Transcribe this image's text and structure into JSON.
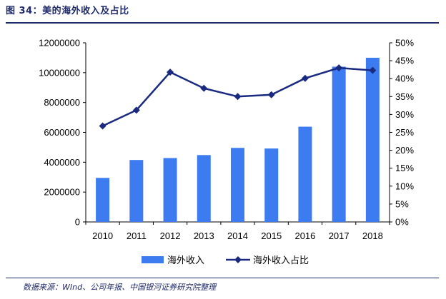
{
  "header": {
    "title": "图 34：美的海外收入及占比"
  },
  "footer": {
    "source": "数据来源：WInd、公司年报、中国银河证券研究院整理"
  },
  "chart_data": {
    "type": "bar",
    "categories": [
      "2010",
      "2011",
      "2012",
      "2013",
      "2014",
      "2015",
      "2016",
      "2017",
      "2018"
    ],
    "series": [
      {
        "name": "海外收入",
        "type": "bar",
        "axis": "left",
        "color": "#3d7cf0",
        "values": [
          2950000,
          4150000,
          4280000,
          4480000,
          4960000,
          4920000,
          6380000,
          10400000,
          11000000
        ]
      },
      {
        "name": "海外收入占比",
        "type": "line",
        "axis": "right",
        "color": "#1a2a80",
        "values": [
          0.268,
          0.312,
          0.418,
          0.373,
          0.35,
          0.355,
          0.401,
          0.43,
          0.423
        ]
      }
    ],
    "y_left": {
      "ylim": [
        0,
        12000000
      ],
      "ticks": [
        "0",
        "2000000",
        "4000000",
        "6000000",
        "8000000",
        "10000000",
        "12000000"
      ]
    },
    "y_right": {
      "ylim": [
        0,
        0.5
      ],
      "ticks": [
        "0%",
        "5%",
        "10%",
        "15%",
        "20%",
        "25%",
        "30%",
        "35%",
        "40%",
        "45%",
        "50%"
      ]
    },
    "legend": "bottom-center",
    "grid": false
  }
}
